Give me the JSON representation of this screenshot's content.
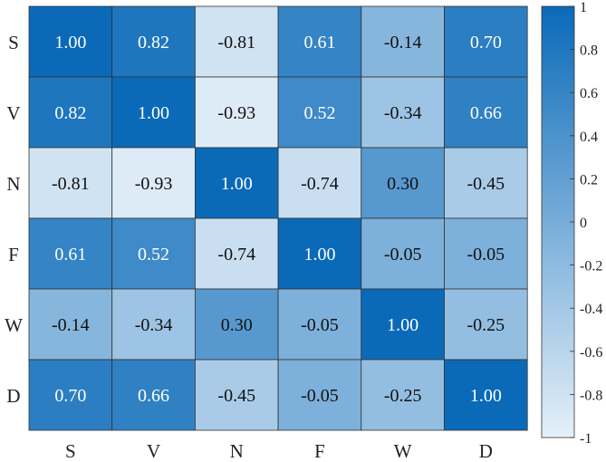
{
  "chart_data": {
    "type": "heatmap",
    "title": "",
    "xlabel": "",
    "ylabel": "",
    "row_labels": [
      "S",
      "V",
      "N",
      "F",
      "W",
      "D"
    ],
    "col_labels": [
      "S",
      "V",
      "N",
      "F",
      "W",
      "D"
    ],
    "values": [
      [
        1.0,
        0.82,
        -0.81,
        0.61,
        -0.14,
        0.7
      ],
      [
        0.82,
        1.0,
        -0.93,
        0.52,
        -0.34,
        0.66
      ],
      [
        -0.81,
        -0.93,
        1.0,
        -0.74,
        0.3,
        -0.45
      ],
      [
        0.61,
        0.52,
        -0.74,
        1.0,
        -0.05,
        -0.05
      ],
      [
        -0.14,
        -0.34,
        0.3,
        -0.05,
        1.0,
        -0.25
      ],
      [
        0.7,
        0.66,
        -0.45,
        -0.05,
        -0.25,
        1.0
      ]
    ],
    "value_format_decimals": 2,
    "color_range": [
      -1,
      1
    ],
    "color_low": "#e5f0f9",
    "color_high": "#0a6ab8",
    "colorbar": {
      "ticks": [
        1,
        0.8,
        0.6,
        0.4,
        0.2,
        0,
        -0.2,
        -0.4,
        -0.6,
        -0.8,
        -1
      ],
      "tick_labels": [
        "1",
        "0.8",
        "0.6",
        "0.4",
        "0.2",
        "0",
        "-0.2",
        "-0.4",
        "-0.6",
        "-0.8",
        "-1"
      ],
      "placement": "right"
    },
    "grid": false
  }
}
